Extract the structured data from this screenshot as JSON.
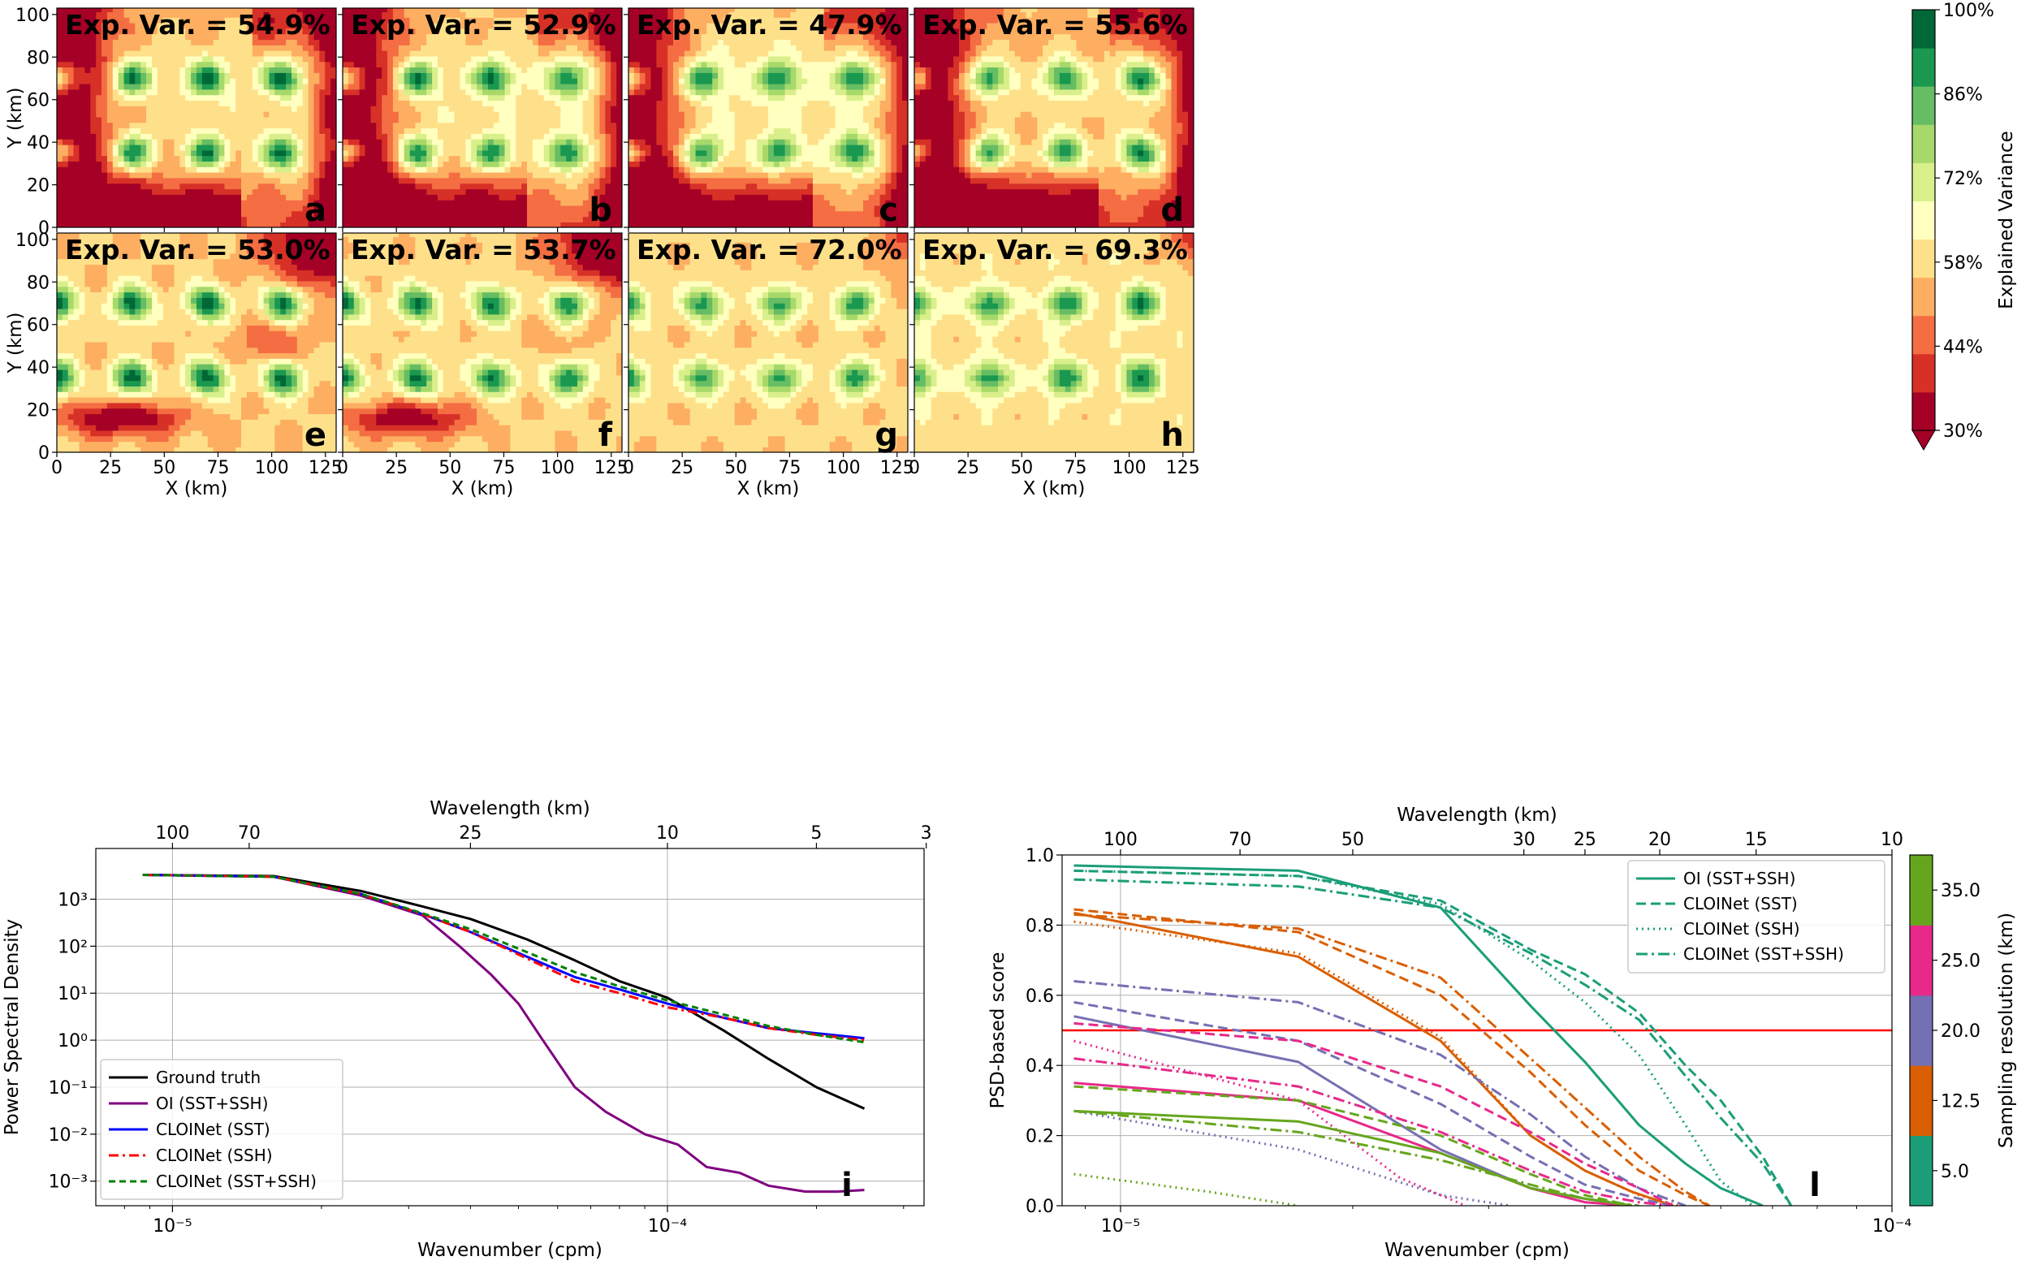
{
  "colormap": [
    "#a50026",
    "#d73027",
    "#f46d43",
    "#fdae61",
    "#fee08b",
    "#ffffbf",
    "#d9ef8b",
    "#a6d96a",
    "#66bd63",
    "#1a9850",
    "#006837"
  ],
  "panels": [
    {
      "letter": "a",
      "expvar_text": "Exp. Var. = 54.9%"
    },
    {
      "letter": "b",
      "expvar_text": "Exp. Var. = 52.9%"
    },
    {
      "letter": "c",
      "expvar_text": "Exp. Var. = 47.9%"
    },
    {
      "letter": "d",
      "expvar_text": "Exp. Var. = 55.6%"
    },
    {
      "letter": "e",
      "expvar_text": "Exp. Var. = 53.0%"
    },
    {
      "letter": "f",
      "expvar_text": "Exp. Var. = 53.7%"
    },
    {
      "letter": "g",
      "expvar_text": "Exp. Var. = 72.0%"
    },
    {
      "letter": "h",
      "expvar_text": "Exp. Var. = 69.3%"
    }
  ],
  "maps_axes": {
    "xlabel": "X (km)",
    "ylabel": "Y (km)",
    "xticks": [
      "0",
      "25",
      "50",
      "75",
      "100",
      "125"
    ],
    "yticks": [
      "0",
      "20",
      "40",
      "60",
      "80",
      "100"
    ]
  },
  "colorbar": {
    "label": "Explained Variance",
    "ticks": [
      "100%",
      "86%",
      "72%",
      "58%",
      "44%",
      "30%"
    ]
  },
  "chart_data": [
    {
      "type": "line",
      "panel": "i",
      "xlabel": "Wavenumber (cpm)",
      "ylabel": "Power Spectral Density",
      "top_xlabel": "Wavelength (km)",
      "xscale": "log",
      "yscale": "log",
      "xlim": [
        7e-06,
        0.00033
      ],
      "ylim": [
        0.0003,
        12000
      ],
      "xticks": [
        {
          "value": 1e-05,
          "label": "10⁻⁵"
        },
        {
          "value": 0.0001,
          "label": "10⁻⁴"
        }
      ],
      "yticks": [
        {
          "value": 0.001,
          "label": "10⁻³"
        },
        {
          "value": 0.01,
          "label": "10⁻²"
        },
        {
          "value": 0.1,
          "label": "10⁻¹"
        },
        {
          "value": 1,
          "label": "10⁰"
        },
        {
          "value": 10,
          "label": "10¹"
        },
        {
          "value": 100,
          "label": "10²"
        },
        {
          "value": 1000,
          "label": "10³"
        }
      ],
      "top_ticks": [
        {
          "value": 100,
          "label": "100"
        },
        {
          "value": 70,
          "label": "70"
        },
        {
          "value": 25,
          "label": "25"
        },
        {
          "value": 10,
          "label": "10"
        },
        {
          "value": 5,
          "label": "5"
        },
        {
          "value": 3,
          "label": "3"
        }
      ],
      "legend": "lower-left",
      "series": [
        {
          "name": "Ground truth",
          "color": "#000000",
          "dash": "",
          "x": [
            8.7e-06,
            1.6e-05,
            2.4e-05,
            3.2e-05,
            4e-05,
            5.2e-05,
            6.5e-05,
            8e-05,
            0.0001,
            0.00013,
            0.00016,
            0.0002,
            0.00025
          ],
          "y": [
            3300,
            3100,
            1500,
            700,
            380,
            140,
            50,
            18,
            8,
            1.6,
            0.4,
            0.1,
            0.035
          ]
        },
        {
          "name": "OI (SST+SSH)",
          "color": "#800080",
          "dash": "",
          "x": [
            8.7e-06,
            1.6e-05,
            2.4e-05,
            3.2e-05,
            3.8e-05,
            4.4e-05,
            5e-05,
            5.6e-05,
            6.5e-05,
            7.5e-05,
            9e-05,
            0.000105,
            0.00012,
            0.00014,
            0.00016,
            0.00019,
            0.00022,
            0.00025
          ],
          "y": [
            3300,
            3000,
            1200,
            450,
            100,
            25,
            6,
            1,
            0.1,
            0.03,
            0.01,
            0.006,
            0.002,
            0.0015,
            0.0008,
            0.0006,
            0.0006,
            0.00065
          ]
        },
        {
          "name": "CLOINet (SST)",
          "color": "#0000ff",
          "dash": "",
          "x": [
            8.7e-06,
            1.6e-05,
            2.4e-05,
            3.2e-05,
            4e-05,
            5.2e-05,
            6.5e-05,
            8e-05,
            0.0001,
            0.00013,
            0.00016,
            0.0002,
            0.00025
          ],
          "y": [
            3300,
            3000,
            1300,
            480,
            200,
            60,
            22,
            12,
            6,
            3,
            1.8,
            1.4,
            1.1
          ]
        },
        {
          "name": "CLOINet (SSH)",
          "color": "#ff0000",
          "dash": "12,5,3,5",
          "x": [
            8.7e-06,
            1.6e-05,
            2.4e-05,
            3.2e-05,
            4e-05,
            5.2e-05,
            6.5e-05,
            8e-05,
            0.0001,
            0.00013,
            0.00016,
            0.0002,
            0.00025
          ],
          "y": [
            3300,
            3000,
            1300,
            480,
            200,
            55,
            18,
            10,
            5,
            3,
            1.8,
            1.3,
            1.0
          ]
        },
        {
          "name": "CLOINet (SST+SSH)",
          "color": "#008000",
          "dash": "8,5",
          "x": [
            8.7e-06,
            1.6e-05,
            2.4e-05,
            3.2e-05,
            4e-05,
            5.2e-05,
            6.5e-05,
            8e-05,
            0.0001,
            0.00013,
            0.00016,
            0.0002,
            0.00025
          ],
          "y": [
            3300,
            3000,
            1300,
            500,
            230,
            75,
            28,
            14,
            7,
            3.5,
            2,
            1.3,
            0.9
          ]
        }
      ]
    },
    {
      "type": "line",
      "panel": "l",
      "xlabel": "Wavenumber (cpm)",
      "ylabel": "PSD-based score",
      "top_xlabel": "Wavelength (km)",
      "xscale": "log",
      "yscale": "linear",
      "xlim": [
        8.4e-06,
        0.0001
      ],
      "ylim": [
        0,
        1.0
      ],
      "xticks": [
        {
          "value": 1e-05,
          "label": "10⁻⁵"
        },
        {
          "value": 0.0001,
          "label": "10⁻⁴"
        }
      ],
      "yticks": [
        {
          "value": 0,
          "label": "0.0"
        },
        {
          "value": 0.2,
          "label": "0.2"
        },
        {
          "value": 0.4,
          "label": "0.4"
        },
        {
          "value": 0.6,
          "label": "0.6"
        },
        {
          "value": 0.8,
          "label": "0.8"
        },
        {
          "value": 1.0,
          "label": "1.0"
        }
      ],
      "top_ticks": [
        {
          "value": 100,
          "label": "100"
        },
        {
          "value": 70,
          "label": "70"
        },
        {
          "value": 50,
          "label": "50"
        },
        {
          "value": 30,
          "label": "30"
        },
        {
          "value": 25,
          "label": "25"
        },
        {
          "value": 20,
          "label": "20"
        },
        {
          "value": 15,
          "label": "15"
        },
        {
          "value": 10,
          "label": "10"
        }
      ],
      "threshold": 0.5,
      "legend": "top-right",
      "legend_entries": [
        {
          "name": "OI (SST+SSH)",
          "dash": ""
        },
        {
          "name": "CLOINet (SST)",
          "dash": "12,6"
        },
        {
          "name": "CLOINet (SSH)",
          "dash": "2,5"
        },
        {
          "name": "CLOINet (SST+SSH)",
          "dash": "14,5,3,5"
        }
      ],
      "series": [
        {
          "name": "OI 5.0",
          "color": "#1b9e77",
          "dash": "",
          "x": [
            8.7e-06,
            1.7e-05,
            2.6e-05,
            3.4e-05,
            4e-05,
            4.7e-05,
            5.4e-05,
            6e-05,
            6.8e-05
          ],
          "y": [
            0.97,
            0.955,
            0.85,
            0.57,
            0.41,
            0.23,
            0.12,
            0.05,
            0.0
          ]
        },
        {
          "name": "SST 5.0",
          "color": "#1b9e77",
          "dash": "12,6",
          "x": [
            8.7e-06,
            1.7e-05,
            2.6e-05,
            3.4e-05,
            4e-05,
            4.7e-05,
            5.4e-05,
            6e-05,
            6.8e-05,
            7.4e-05
          ],
          "y": [
            0.955,
            0.94,
            0.87,
            0.73,
            0.66,
            0.55,
            0.4,
            0.3,
            0.14,
            0.0
          ]
        },
        {
          "name": "SSH 5.0",
          "color": "#1b9e77",
          "dash": "2,5",
          "x": [
            8.7e-06,
            1.7e-05,
            2.6e-05,
            3.4e-05,
            4e-05,
            4.7e-05,
            5.4e-05,
            6e-05,
            6.6e-05
          ],
          "y": [
            0.955,
            0.94,
            0.86,
            0.7,
            0.58,
            0.43,
            0.23,
            0.07,
            0.0
          ]
        },
        {
          "name": "SST+SSH 5.0",
          "color": "#1b9e77",
          "dash": "14,5,3,5",
          "x": [
            8.7e-06,
            1.7e-05,
            2.6e-05,
            3.4e-05,
            4e-05,
            4.7e-05,
            5.4e-05,
            6e-05,
            6.8e-05,
            7.4e-05
          ],
          "y": [
            0.93,
            0.91,
            0.85,
            0.72,
            0.63,
            0.53,
            0.37,
            0.25,
            0.12,
            0.0
          ]
        },
        {
          "name": "OI 12.5",
          "color": "#d95f02",
          "dash": "",
          "x": [
            8.7e-06,
            1.7e-05,
            2.6e-05,
            3.4e-05,
            4e-05,
            4.6e-05,
            5.2e-05
          ],
          "y": [
            0.835,
            0.71,
            0.47,
            0.2,
            0.1,
            0.04,
            0.0
          ]
        },
        {
          "name": "SST 12.5",
          "color": "#d95f02",
          "dash": "12,6",
          "x": [
            8.7e-06,
            1.7e-05,
            2.6e-05,
            3.4e-05,
            4e-05,
            4.7e-05,
            5.4e-05,
            5.8e-05
          ],
          "y": [
            0.845,
            0.78,
            0.6,
            0.38,
            0.23,
            0.1,
            0.03,
            0.0
          ]
        },
        {
          "name": "SSH 12.5",
          "color": "#d95f02",
          "dash": "2,5",
          "x": [
            8.7e-06,
            1.7e-05,
            2.6e-05,
            3.4e-05,
            4e-05,
            4.7e-05,
            5.3e-05
          ],
          "y": [
            0.81,
            0.72,
            0.48,
            0.2,
            0.1,
            0.03,
            0.0
          ]
        },
        {
          "name": "SST+SSH 12.5",
          "color": "#d95f02",
          "dash": "14,5,3,5",
          "x": [
            8.7e-06,
            1.7e-05,
            2.6e-05,
            3.4e-05,
            4e-05,
            4.7e-05,
            5.4e-05,
            5.8e-05
          ],
          "y": [
            0.83,
            0.79,
            0.65,
            0.42,
            0.28,
            0.14,
            0.04,
            0.0
          ]
        },
        {
          "name": "OI 20.0",
          "color": "#7570b3",
          "dash": "",
          "x": [
            8.7e-06,
            1.7e-05,
            2.6e-05,
            3.4e-05,
            4e-05,
            4.6e-05
          ],
          "y": [
            0.54,
            0.41,
            0.16,
            0.05,
            0.02,
            0.0
          ]
        },
        {
          "name": "SST 20.0",
          "color": "#7570b3",
          "dash": "12,6",
          "x": [
            8.7e-06,
            1.7e-05,
            2.6e-05,
            3.4e-05,
            4e-05,
            4.7e-05,
            5.2e-05
          ],
          "y": [
            0.58,
            0.47,
            0.29,
            0.14,
            0.06,
            0.02,
            0.0
          ]
        },
        {
          "name": "SSH 20.0",
          "color": "#7570b3",
          "dash": "2,5",
          "x": [
            8.7e-06,
            1.7e-05,
            2.6e-05,
            3.2e-05
          ],
          "y": [
            0.27,
            0.16,
            0.03,
            0.0
          ]
        },
        {
          "name": "SST+SSH 20.0",
          "color": "#7570b3",
          "dash": "14,5,3,5",
          "x": [
            8.7e-06,
            1.7e-05,
            2.6e-05,
            3.4e-05,
            4e-05,
            4.7e-05,
            5.4e-05
          ],
          "y": [
            0.64,
            0.58,
            0.43,
            0.26,
            0.14,
            0.05,
            0.0
          ]
        },
        {
          "name": "OI 25.0",
          "color": "#e7298a",
          "dash": "",
          "x": [
            8.7e-06,
            1.7e-05,
            2.6e-05,
            3.4e-05,
            4e-05,
            4.6e-05
          ],
          "y": [
            0.35,
            0.3,
            0.15,
            0.05,
            0.01,
            0.0
          ]
        },
        {
          "name": "SST 25.0",
          "color": "#e7298a",
          "dash": "12,6",
          "x": [
            8.7e-06,
            1.7e-05,
            2.6e-05,
            3.4e-05,
            4e-05,
            4.7e-05,
            5.2e-05
          ],
          "y": [
            0.52,
            0.47,
            0.34,
            0.21,
            0.12,
            0.05,
            0.0
          ]
        },
        {
          "name": "SSH 25.0",
          "color": "#e7298a",
          "dash": "2,5",
          "x": [
            8.7e-06,
            1.7e-05,
            2.3e-05,
            2.8e-05
          ],
          "y": [
            0.47,
            0.3,
            0.08,
            0.0
          ]
        },
        {
          "name": "SST+SSH 25.0",
          "color": "#e7298a",
          "dash": "14,5,3,5",
          "x": [
            8.7e-06,
            1.7e-05,
            2.6e-05,
            3.4e-05,
            4e-05,
            4.7e-05,
            5.2e-05
          ],
          "y": [
            0.42,
            0.34,
            0.21,
            0.1,
            0.04,
            0.01,
            0.0
          ]
        },
        {
          "name": "OI 35.0",
          "color": "#66a61e",
          "dash": "",
          "x": [
            8.7e-06,
            1.7e-05,
            2.6e-05,
            3.4e-05,
            4e-05,
            4.6e-05
          ],
          "y": [
            0.27,
            0.24,
            0.15,
            0.05,
            0.02,
            0.0
          ]
        },
        {
          "name": "SST 35.0",
          "color": "#66a61e",
          "dash": "12,6",
          "x": [
            8.7e-06,
            1.7e-05,
            2.6e-05,
            3.4e-05,
            4e-05,
            4.6e-05
          ],
          "y": [
            0.34,
            0.3,
            0.2,
            0.09,
            0.03,
            0.0
          ]
        },
        {
          "name": "SSH 35.0",
          "color": "#66a61e",
          "dash": "2,5",
          "x": [
            8.7e-06,
            1.3e-05,
            1.7e-05
          ],
          "y": [
            0.09,
            0.04,
            0.0
          ]
        },
        {
          "name": "SST+SSH 35.0",
          "color": "#66a61e",
          "dash": "14,5,3,5",
          "x": [
            8.7e-06,
            1.7e-05,
            2.6e-05,
            3.4e-05,
            4e-05,
            4.7e-05
          ],
          "y": [
            0.27,
            0.21,
            0.13,
            0.06,
            0.02,
            0.0
          ]
        }
      ],
      "sampling_colorbar": {
        "label": "Sampling resolution (km)",
        "levels": [
          "5.0",
          "12.5",
          "20.0",
          "25.0",
          "35.0"
        ],
        "colors": [
          "#1b9e77",
          "#d95f02",
          "#7570b3",
          "#e7298a",
          "#66a61e"
        ]
      }
    }
  ]
}
